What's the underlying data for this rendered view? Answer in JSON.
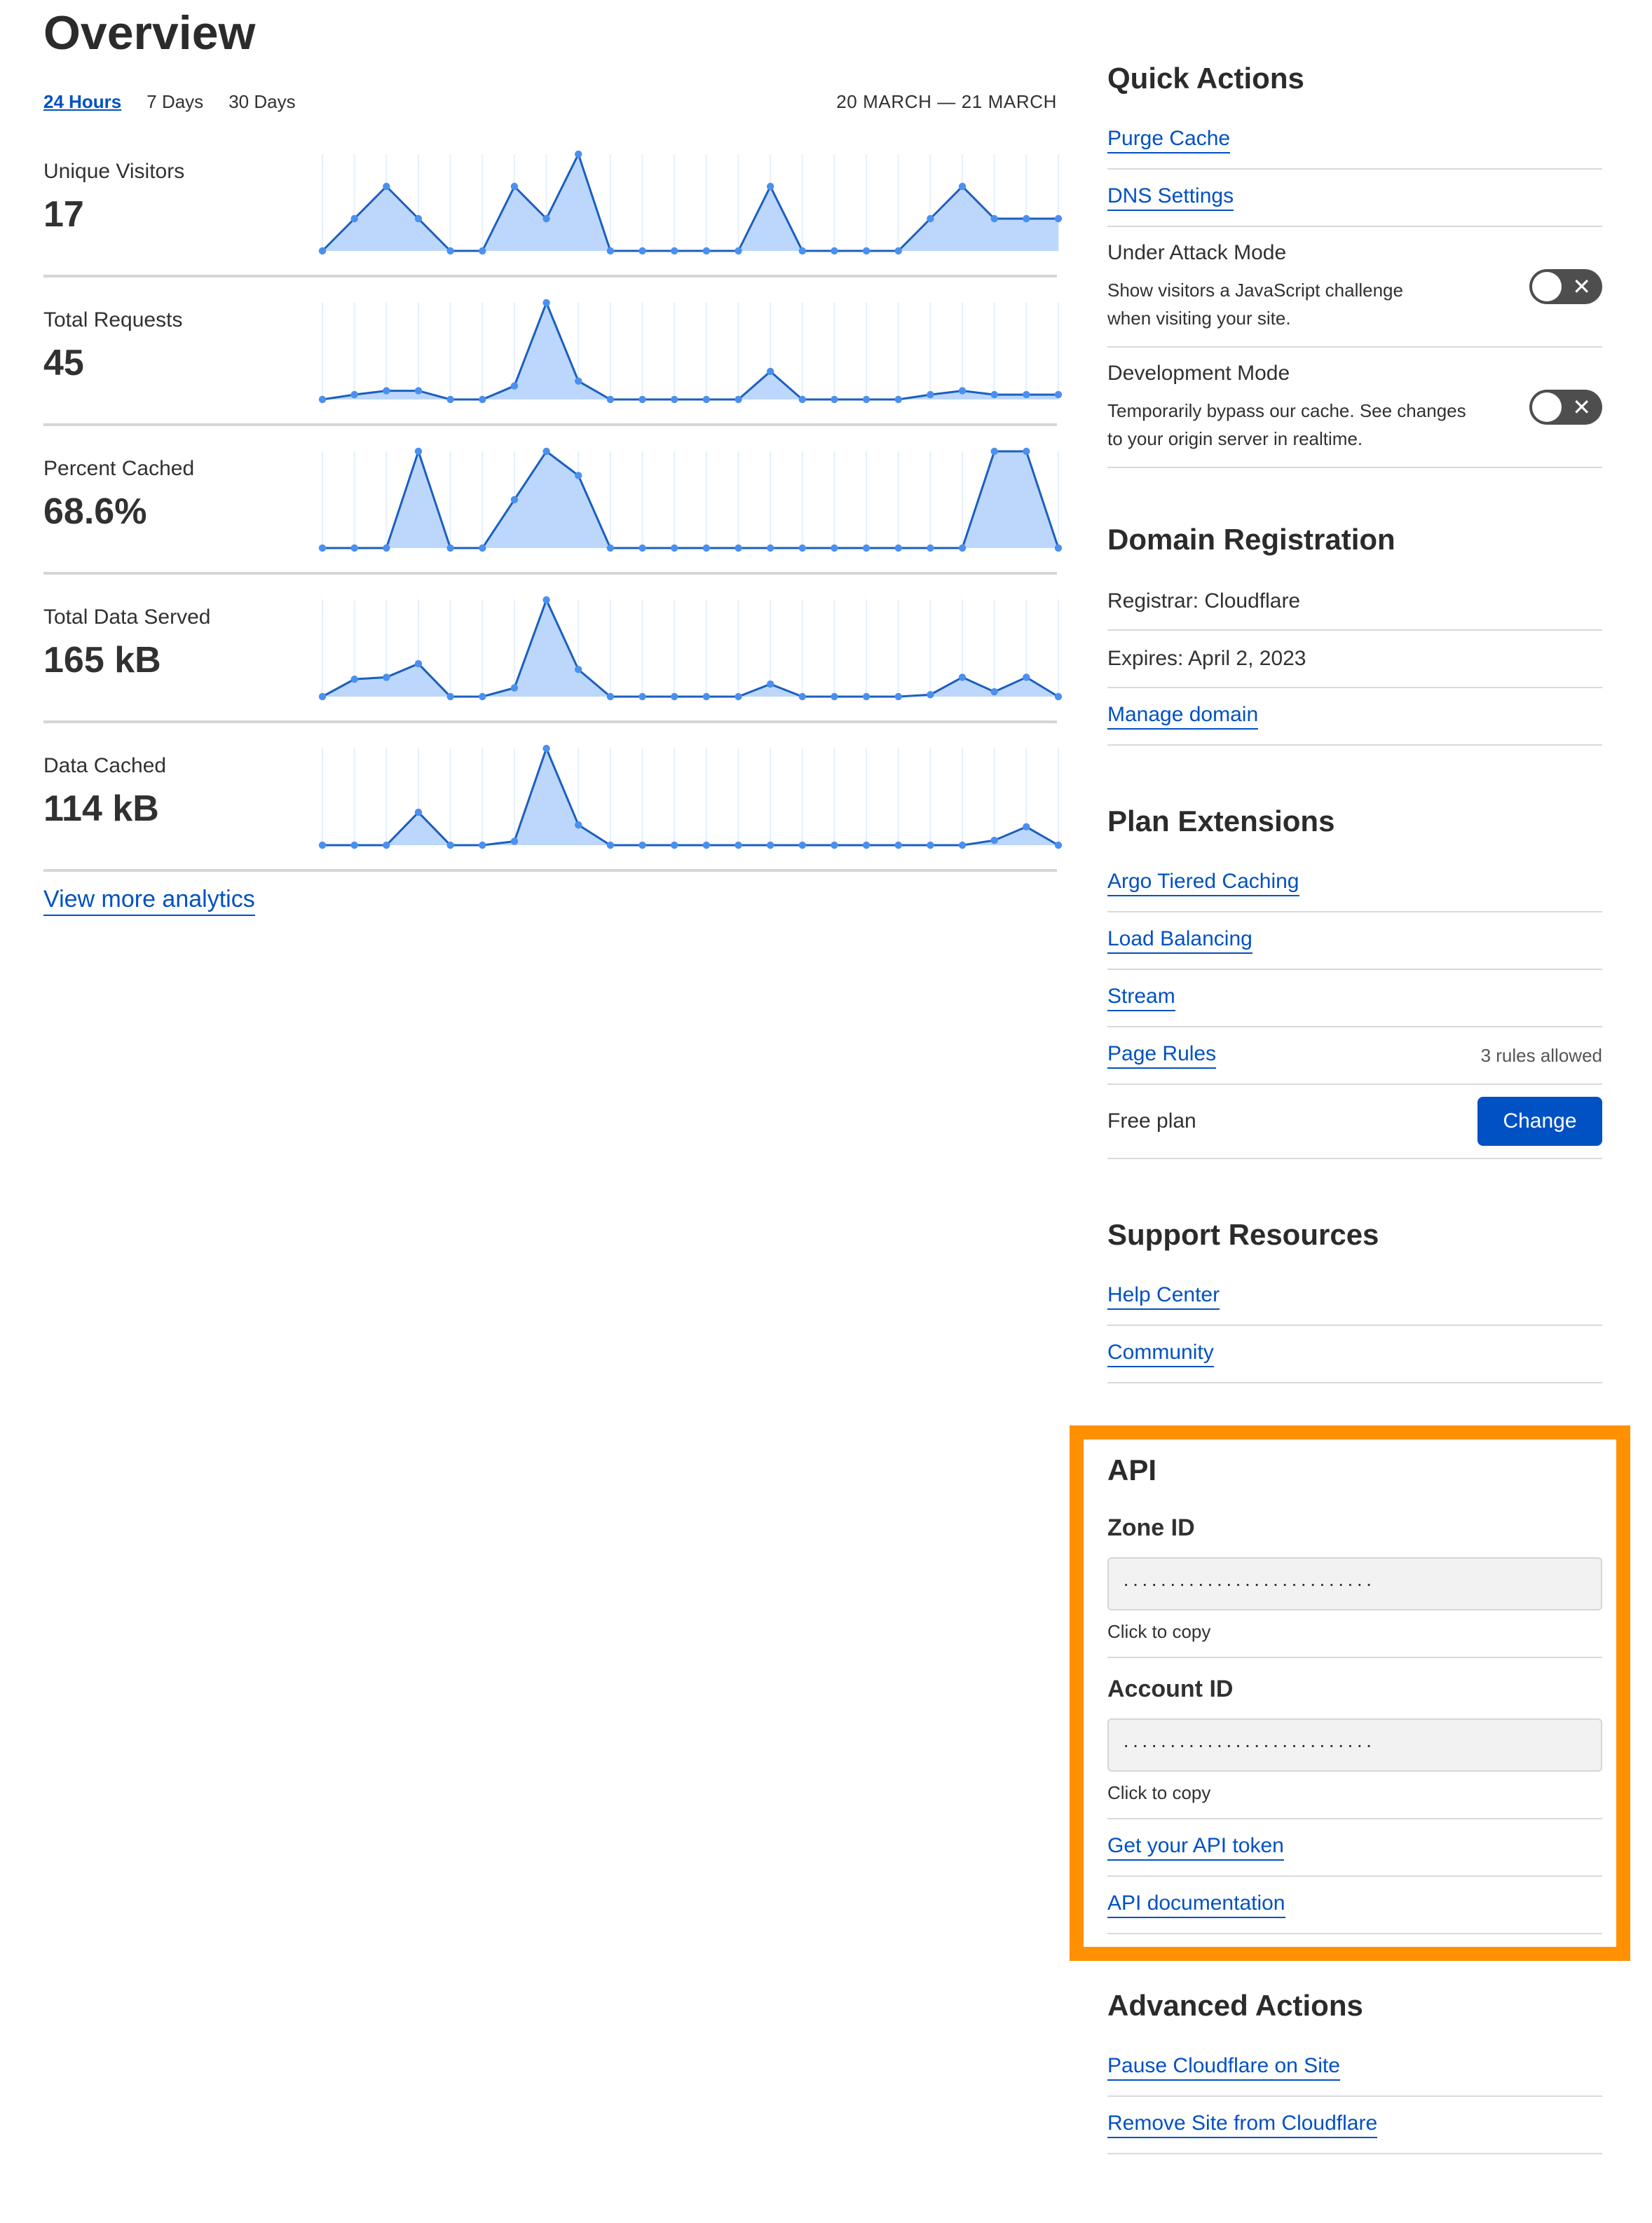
{
  "overview": {
    "title": "Overview",
    "tabs": [
      {
        "label": "24 Hours",
        "active": true
      },
      {
        "label": "7 Days"
      },
      {
        "label": "30 Days"
      }
    ],
    "date_range": "20 MARCH — 21 MARCH",
    "metrics": [
      {
        "label": "Unique Visitors",
        "value": "17"
      },
      {
        "label": "Total Requests",
        "value": "45"
      },
      {
        "label": "Percent Cached",
        "value": "68.6%"
      },
      {
        "label": "Total Data Served",
        "value": "165 kB"
      },
      {
        "label": "Data Cached",
        "value": "114 kB"
      }
    ],
    "more_link": "View more analytics"
  },
  "chart_data": [
    {
      "type": "area",
      "name": "Unique Visitors",
      "points": 24,
      "values": [
        0,
        1,
        2,
        1,
        0,
        0,
        2,
        1,
        3,
        0,
        0,
        0,
        0,
        0,
        2,
        0,
        0,
        0,
        0,
        1,
        2,
        1,
        1,
        1
      ]
    },
    {
      "type": "area",
      "name": "Total Requests",
      "points": 24,
      "values": [
        0,
        5,
        9,
        9,
        0,
        0,
        14,
        100,
        19,
        0,
        0,
        0,
        0,
        0,
        29,
        0,
        0,
        0,
        0,
        5,
        9,
        5,
        5,
        5
      ]
    },
    {
      "type": "area",
      "name": "Percent Cached",
      "points": 24,
      "values": [
        0,
        0,
        0,
        100,
        0,
        0,
        50,
        100,
        75,
        0,
        0,
        0,
        0,
        0,
        0,
        0,
        0,
        0,
        0,
        0,
        0,
        100,
        100,
        0
      ]
    },
    {
      "type": "area",
      "name": "Total Data Served",
      "points": 24,
      "values": [
        0,
        18,
        20,
        34,
        0,
        0,
        9,
        100,
        28,
        0,
        0,
        0,
        0,
        0,
        13,
        0,
        0,
        0,
        0,
        2,
        20,
        5,
        20,
        0
      ]
    },
    {
      "type": "area",
      "name": "Data Cached",
      "points": 24,
      "values": [
        0,
        0,
        0,
        34,
        0,
        0,
        4,
        100,
        21,
        0,
        0,
        0,
        0,
        0,
        0,
        0,
        0,
        0,
        0,
        0,
        0,
        5,
        19,
        0
      ]
    }
  ],
  "colors": {
    "accent": "#0051c3",
    "line": "#1a5fbf",
    "fill": "#bcd7fb",
    "dot": "#4a90f0",
    "highlight": "#ff9000",
    "toggle_off": "#4e4e4e"
  },
  "quick_actions": {
    "title": "Quick Actions",
    "links": [
      "Purge Cache",
      "DNS Settings"
    ],
    "toggles": [
      {
        "title": "Under Attack Mode",
        "desc": "Show visitors a JavaScript challenge when visiting your site.",
        "on": false,
        "icon": "close-icon"
      },
      {
        "title": "Development Mode",
        "desc": "Temporarily bypass our cache. See changes to your origin server in realtime.",
        "on": false,
        "icon": "close-icon"
      }
    ]
  },
  "domain": {
    "title": "Domain Registration",
    "registrar": "Registrar: Cloudflare",
    "expires": "Expires: April 2, 2023",
    "manage": "Manage domain"
  },
  "plan": {
    "title": "Plan Extensions",
    "links": [
      "Argo Tiered Caching",
      "Load Balancing",
      "Stream",
      "Page Rules"
    ],
    "page_rules_note": "3 rules allowed",
    "plan_label": "Free plan",
    "change_label": "Change"
  },
  "support": {
    "title": "Support Resources",
    "links": [
      "Help Center",
      "Community"
    ]
  },
  "api": {
    "title": "API",
    "zone_label": "Zone ID",
    "zone_value": "···························",
    "account_label": "Account ID",
    "account_value": "···························",
    "copy_hint": "Click to copy",
    "token_link": "Get your API token",
    "docs_link": "API documentation"
  },
  "advanced": {
    "title": "Advanced Actions",
    "links": [
      "Pause Cloudflare on Site",
      "Remove Site from Cloudflare"
    ]
  }
}
